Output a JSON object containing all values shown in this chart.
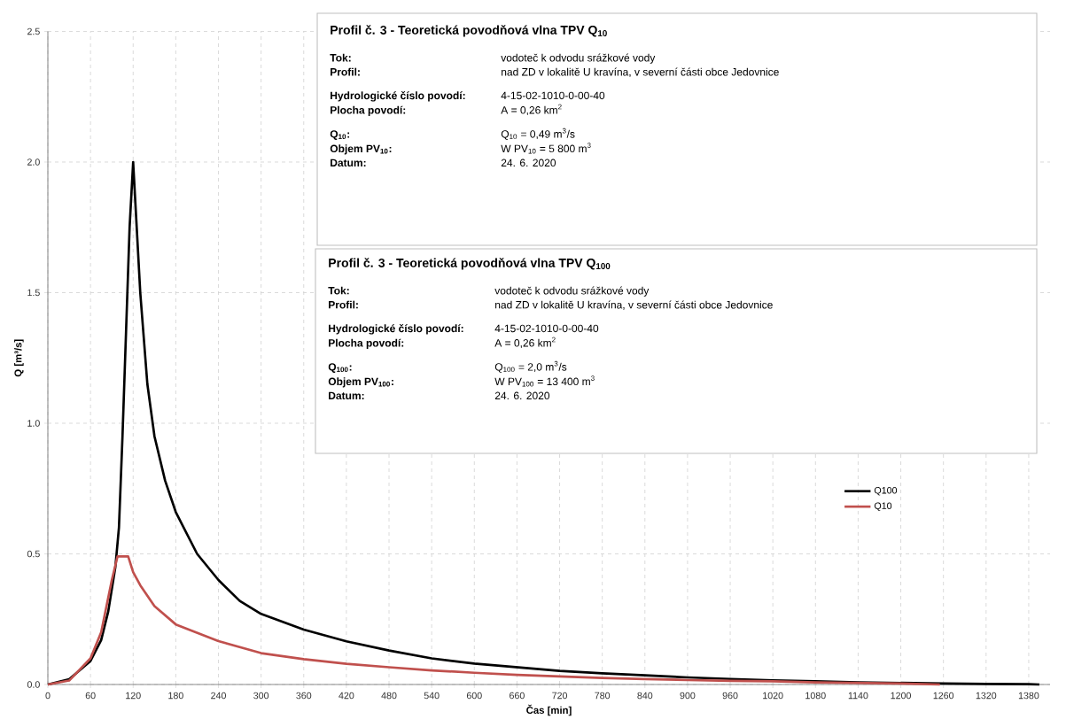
{
  "chart_data": {
    "type": "line",
    "xlabel": "Čas [min]",
    "ylabel": "Q [m³/s]",
    "xlim": [
      0,
      1410
    ],
    "ylim": [
      0,
      2.5
    ],
    "xticks": [
      0,
      60,
      120,
      180,
      240,
      300,
      360,
      420,
      480,
      540,
      600,
      660,
      720,
      780,
      840,
      900,
      960,
      1020,
      1080,
      1140,
      1200,
      1260,
      1320,
      1380
    ],
    "yticks": [
      {
        "value": 0,
        "label": "0.0"
      },
      {
        "value": 0.5,
        "label": "0.5"
      },
      {
        "value": 1,
        "label": "1.0"
      },
      {
        "value": 1.5,
        "label": "1.5"
      },
      {
        "value": 2,
        "label": "2.0"
      },
      {
        "value": 2.5,
        "label": "2.5"
      }
    ],
    "grid": true,
    "legend": "right",
    "series": [
      {
        "name": "Q100",
        "color": "#000000",
        "x": [
          0,
          30,
          60,
          75,
          85,
          95,
          100,
          105,
          110,
          115,
          120,
          125,
          130,
          140,
          150,
          165,
          180,
          210,
          240,
          270,
          300,
          360,
          420,
          480,
          540,
          600,
          660,
          720,
          780,
          840,
          900,
          960,
          1020,
          1080,
          1140,
          1200,
          1260,
          1320,
          1380,
          1395
        ],
        "values": [
          0,
          0.02,
          0.09,
          0.17,
          0.28,
          0.45,
          0.6,
          0.95,
          1.35,
          1.75,
          2.0,
          1.75,
          1.5,
          1.15,
          0.95,
          0.78,
          0.66,
          0.5,
          0.4,
          0.32,
          0.27,
          0.21,
          0.165,
          0.13,
          0.1,
          0.08,
          0.066,
          0.052,
          0.043,
          0.035,
          0.027,
          0.021,
          0.016,
          0.012,
          0.008,
          0.006,
          0.004,
          0.002,
          0.001,
          0
        ]
      },
      {
        "name": "Q10",
        "color": "#c0504d",
        "x": [
          0,
          30,
          60,
          75,
          90,
          98,
          113,
          120,
          130,
          150,
          180,
          240,
          300,
          360,
          420,
          480,
          540,
          600,
          660,
          720,
          780,
          840,
          900,
          960,
          1020,
          1080,
          1140,
          1200,
          1255
        ],
        "values": [
          0,
          0.015,
          0.1,
          0.2,
          0.4,
          0.49,
          0.49,
          0.43,
          0.38,
          0.3,
          0.23,
          0.166,
          0.12,
          0.097,
          0.079,
          0.066,
          0.054,
          0.045,
          0.037,
          0.031,
          0.025,
          0.021,
          0.017,
          0.014,
          0.012,
          0.008,
          0.006,
          0.004,
          0
        ]
      }
    ],
    "annotations": [
      "Profil č. 3 - Teoretická povodňová vlna TPV Q$_{10}$",
      "Tok:",
      "vodoteč k odvodu srážkové vody",
      "Profil:",
      "nad ZD v lokalitě U kravína, v severní části obce Jedovnice",
      "Hydrologické číslo povodí:",
      "4-15-02-1010-0-00-40",
      "Plocha povodí:",
      "A = 0,26 km$^{2}$",
      "Q$_{10}$:",
      "Q$_{10}$ = 0,49 m$^{3}$/s",
      "Objem PV$_{10}$:",
      "W PV$_{10}$ = 5 800 m$^{3}$",
      "Datum:",
      "24. 6. 2020",
      "Profil č. 3 - Teoretická povodňová vlna TPV Q$_{100}$",
      "Tok:",
      "vodoteč k odvodu srážkové vody",
      "Profil:",
      "nad ZD v lokalitě U kravína, v severní části obce Jedovnice",
      "Hydrologické číslo povodí:",
      "4-15-02-1010-0-00-40",
      "Plocha povodí:",
      "A = 0,26 km$^{2}$",
      "Q$_{100}$:",
      "Q$_{100}$ = 2,0 m$^{3}$/s",
      "Objem PV$_{100}$:",
      "W PV$_{100}$ = 13 400 m$^{3}$",
      "Datum:",
      "24. 6. 2020"
    ]
  }
}
